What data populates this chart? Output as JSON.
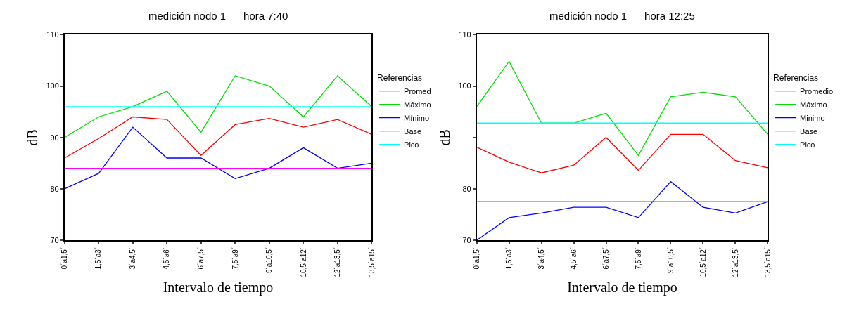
{
  "chart_data": [
    {
      "type": "line",
      "title": "medición nodo 1      hora 7:40",
      "xlabel": "Intervalo de tiempo",
      "ylabel": "dB",
      "legend_title": "Referencias",
      "legend": "right",
      "categories": [
        "0´a1,5´",
        "1,5´a3´",
        "3´a4,5´",
        "4,5´a6´",
        "6´a7,5´",
        "7,5´a9´",
        "9´a10,5´",
        "10,5´a12´",
        "12´a13,5´",
        "13,5´a15´"
      ],
      "ylim": [
        70,
        110
      ],
      "yticks": [
        70,
        80,
        90,
        100,
        110
      ],
      "series": [
        {
          "name": "Promed",
          "color": "#ff0000",
          "values": [
            86,
            89.8,
            94,
            93.5,
            86.5,
            92.5,
            93.7,
            92,
            93.5,
            90.6
          ]
        },
        {
          "name": "Máximo",
          "color": "#00e000",
          "values": [
            90,
            94,
            96,
            99,
            91,
            102,
            100,
            94,
            102,
            96
          ]
        },
        {
          "name": "Mínimo",
          "color": "#0000ff",
          "values": [
            80,
            83,
            92,
            86,
            86,
            82,
            84,
            88,
            84,
            85
          ]
        },
        {
          "name": "Base",
          "color": "#ff00ff",
          "values": [
            84,
            84,
            84,
            84,
            84,
            84,
            84,
            84,
            84,
            84
          ]
        },
        {
          "name": "Pico",
          "color": "#00ffff",
          "values": [
            96,
            96,
            96,
            96,
            96,
            96,
            96,
            96,
            96,
            96
          ]
        }
      ]
    },
    {
      "type": "line",
      "title": "medición nodo 1      hora 12:25",
      "xlabel": "Intervalo de tiempo",
      "ylabel": "dB",
      "legend_title": "Referencias",
      "legend": "right",
      "categories": [
        "0´a1,5´",
        "1,5´a3´",
        "3´a4,5´",
        "4,5´a6´",
        "6´a7,5´",
        "7,5´a9´",
        "9´a10,5´",
        "10,5´a12´",
        "12´a13,5´",
        "13,5´a15´"
      ],
      "ylim": [
        70,
        110
      ],
      "yticks": [
        70,
        80,
        {
          "value": 90,
          "label": null
        },
        100,
        110
      ],
      "series": [
        {
          "name": "Promedio",
          "color": "#ff0000",
          "values": [
            88.1,
            85.2,
            83.1,
            84.6,
            90,
            83.6,
            90.6,
            90.6,
            85.5,
            84.1
          ]
        },
        {
          "name": "Máximo",
          "color": "#00e000",
          "values": [
            96,
            104.8,
            92.8,
            92.8,
            94.7,
            86.5,
            97.9,
            98.8,
            97.9,
            90.6
          ]
        },
        {
          "name": "Minimo",
          "color": "#0000ff",
          "values": [
            70,
            74.4,
            75.3,
            76.4,
            76.4,
            74.4,
            81.4,
            76.4,
            75.3,
            77.5
          ]
        },
        {
          "name": "Base",
          "color": "#ff00ff",
          "values": [
            77.5,
            77.5,
            77.5,
            77.5,
            77.5,
            77.5,
            77.5,
            77.5,
            77.5,
            77.5
          ]
        },
        {
          "name": "Pico",
          "color": "#00ffff",
          "values": [
            92.8,
            92.8,
            92.8,
            92.8,
            92.8,
            92.8,
            92.8,
            92.8,
            92.8,
            92.8
          ]
        }
      ]
    }
  ]
}
